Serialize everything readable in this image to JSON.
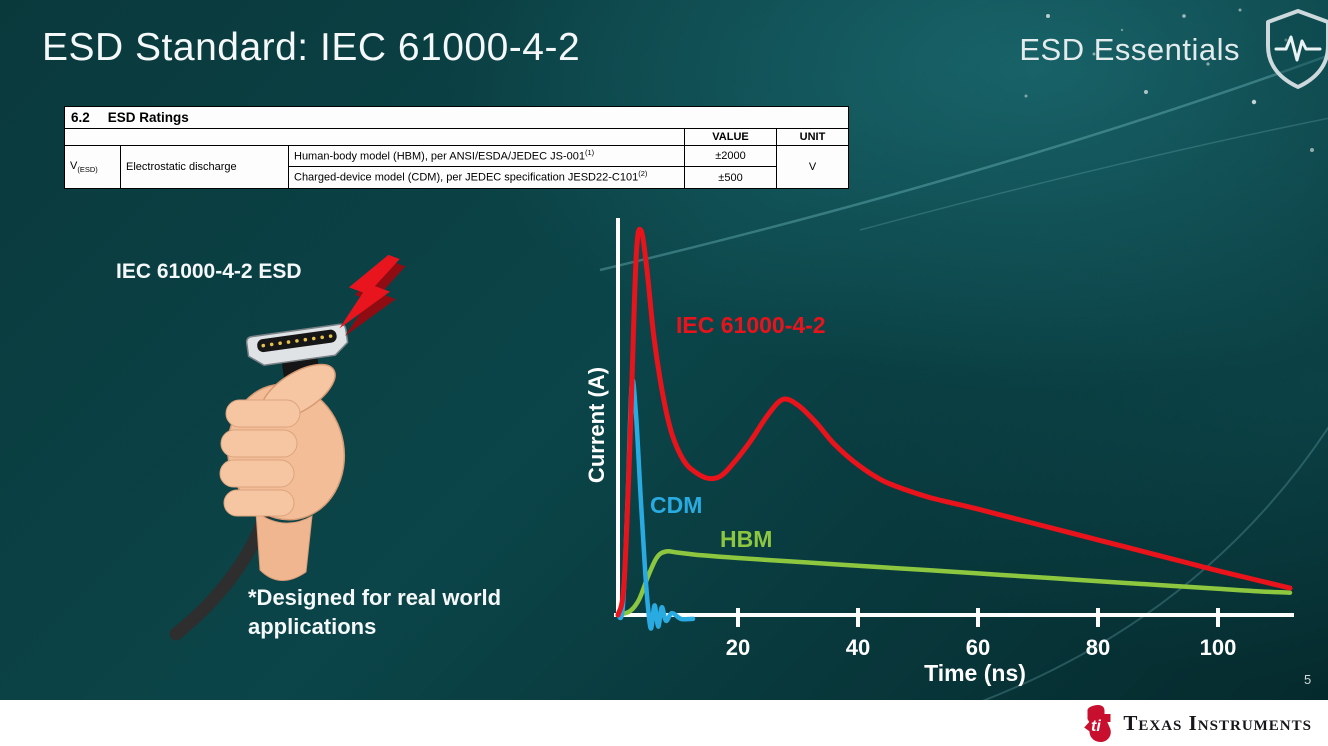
{
  "slide": {
    "title": "ESD Standard: IEC 61000-4-2",
    "series_label": "ESD Essentials",
    "page_number": "5"
  },
  "table": {
    "section_no": "6.2",
    "caption": "ESD Ratings",
    "headers": {
      "value": "VALUE",
      "unit": "UNIT"
    },
    "row_symbol": "V",
    "row_symbol_sub": "(ESD)",
    "row_param": "Electrostatic discharge",
    "rows": [
      {
        "desc": "Human-body model (HBM), per ANSI/ESDA/JEDEC JS-001",
        "sup": "(1)",
        "value": "±2000"
      },
      {
        "desc": "Charged-device model (CDM), per JEDEC specification JESD22-C101",
        "sup": "(2)",
        "value": "±500"
      }
    ],
    "unit": "V"
  },
  "left": {
    "esd_label": "IEC 61000-4-2 ESD",
    "note": "*Designed for real world applications"
  },
  "colors": {
    "iec_red": "#e8131b",
    "cdm_blue": "#29abe2",
    "hbm_green": "#8dc63f",
    "bolt_red": "#e8141e"
  },
  "chart_data": {
    "type": "line",
    "title": "",
    "xlabel": "Time (ns)",
    "ylabel": "Current (A)",
    "x_ticks": [
      20,
      40,
      60,
      80,
      100
    ],
    "xlim": [
      0,
      113
    ],
    "ylim": [
      0,
      1
    ],
    "grid": false,
    "legend_position": "inline-labels",
    "note": "y values are relative current amplitude (axis unlabeled in slide)",
    "series": [
      {
        "id": "iec",
        "label": "IEC 61000-4-2",
        "color": "#e8131b",
        "stroke_width": 5,
        "points": [
          [
            0,
            0
          ],
          [
            1,
            0.08
          ],
          [
            2,
            0.45
          ],
          [
            3,
            0.92
          ],
          [
            3.8,
            1.0
          ],
          [
            4.8,
            0.9
          ],
          [
            6,
            0.72
          ],
          [
            7.5,
            0.57
          ],
          [
            9,
            0.47
          ],
          [
            11,
            0.4
          ],
          [
            13,
            0.37
          ],
          [
            15,
            0.355
          ],
          [
            17,
            0.36
          ],
          [
            19,
            0.39
          ],
          [
            22,
            0.45
          ],
          [
            25,
            0.52
          ],
          [
            27.5,
            0.56
          ],
          [
            30,
            0.545
          ],
          [
            33,
            0.5
          ],
          [
            36,
            0.445
          ],
          [
            40,
            0.39
          ],
          [
            44,
            0.35
          ],
          [
            48,
            0.325
          ],
          [
            52,
            0.305
          ],
          [
            56,
            0.29
          ],
          [
            60,
            0.275
          ],
          [
            65,
            0.255
          ],
          [
            70,
            0.235
          ],
          [
            75,
            0.215
          ],
          [
            80,
            0.195
          ],
          [
            85,
            0.175
          ],
          [
            90,
            0.155
          ],
          [
            95,
            0.135
          ],
          [
            100,
            0.115
          ],
          [
            104,
            0.1
          ],
          [
            108,
            0.085
          ],
          [
            112,
            0.07
          ]
        ]
      },
      {
        "id": "cdm",
        "label": "CDM",
        "color": "#29abe2",
        "stroke_width": 4.5,
        "points": [
          [
            0,
            0
          ],
          [
            0.8,
            0.02
          ],
          [
            1.6,
            0.3
          ],
          [
            2.3,
            0.6
          ],
          [
            3,
            0.52
          ],
          [
            3.8,
            0.3
          ],
          [
            4.5,
            0.12
          ],
          [
            5,
            0.02
          ],
          [
            5.5,
            -0.035
          ],
          [
            6.1,
            0.025
          ],
          [
            6.7,
            -0.03
          ],
          [
            7.3,
            0.02
          ],
          [
            8,
            -0.015
          ],
          [
            9,
            0.005
          ],
          [
            10.5,
            -0.01
          ],
          [
            12.5,
            -0.01
          ]
        ]
      },
      {
        "id": "hbm",
        "label": "HBM",
        "color": "#8dc63f",
        "stroke_width": 4.5,
        "points": [
          [
            0,
            0
          ],
          [
            2,
            0.01
          ],
          [
            3.5,
            0.04
          ],
          [
            5,
            0.1
          ],
          [
            6.5,
            0.15
          ],
          [
            8,
            0.165
          ],
          [
            10,
            0.162
          ],
          [
            14,
            0.155
          ],
          [
            20,
            0.148
          ],
          [
            28,
            0.14
          ],
          [
            36,
            0.132
          ],
          [
            44,
            0.124
          ],
          [
            52,
            0.116
          ],
          [
            60,
            0.108
          ],
          [
            68,
            0.1
          ],
          [
            76,
            0.092
          ],
          [
            84,
            0.084
          ],
          [
            92,
            0.076
          ],
          [
            100,
            0.068
          ],
          [
            106,
            0.062
          ],
          [
            112,
            0.058
          ]
        ]
      }
    ]
  },
  "footer": {
    "brand": "Texas Instruments",
    "logo_monogram": "ti"
  }
}
